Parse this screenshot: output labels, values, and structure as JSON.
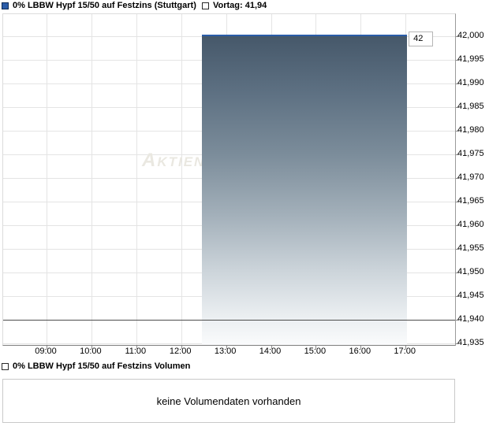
{
  "chart": {
    "legend": {
      "series_label": "0% LBBW Hypf 15/50 auf Festzins (Stuttgart)",
      "vortag_label": "Vortag: 41,94"
    },
    "price_flag": "42",
    "watermark": "Aktien"
  },
  "volume": {
    "legend_label": "0% LBBW Hypf 15/50 auf Festzins Volumen",
    "message": "keine Volumendaten vorhanden"
  },
  "colors": {
    "accent-blue": "#2b5da9",
    "accent-blue-dark": "#0d2b56",
    "fill-top": "#46586a",
    "fill-bottom": "#fafbfc",
    "vortag-line": "#4d4d4d",
    "gridline": "#e4e4e4"
  },
  "chart_data": {
    "type": "area",
    "title": "0% LBBW Hypf 15/50 auf Festzins (Stuttgart)",
    "xlabel": "",
    "ylabel": "",
    "grid": true,
    "legend_position": "top",
    "x_ticks": [
      "09:00",
      "10:00",
      "11:00",
      "12:00",
      "13:00",
      "14:00",
      "15:00",
      "16:00",
      "17:00"
    ],
    "y_tick_labels": [
      "42,000",
      "41,995",
      "41,990",
      "41,985",
      "41,980",
      "41,975",
      "41,970",
      "41,965",
      "41,960",
      "41,955",
      "41,950",
      "41,945",
      "41,940",
      "41,935"
    ],
    "ylim": [
      41.933,
      42.005
    ],
    "series": [
      {
        "name": "0% LBBW Hypf 15/50 auf Festzins (Stuttgart)",
        "type": "area",
        "color": "#2b5da9",
        "points": [
          [
            "12:28",
            42.0
          ],
          [
            "17:02",
            42.0
          ]
        ],
        "point_label": "42"
      },
      {
        "name": "Vortag",
        "type": "hline",
        "value": 41.94,
        "label": "41,94"
      }
    ]
  }
}
